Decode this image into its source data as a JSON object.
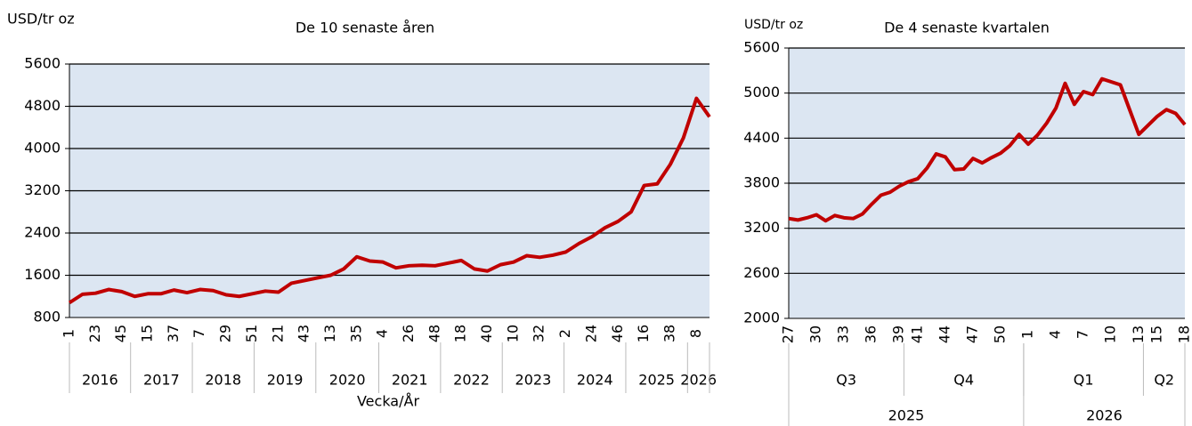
{
  "chart_data": [
    {
      "type": "line",
      "title": "De 10 senaste åren",
      "y_label": "USD/tr oz",
      "x_label": "Vecka/År",
      "categories": [
        1,
        null,
        23,
        null,
        45,
        null,
        15,
        null,
        37,
        null,
        7,
        null,
        29,
        null,
        51,
        null,
        21,
        null,
        43,
        null,
        13,
        null,
        35,
        null,
        4,
        null,
        26,
        null,
        48,
        null,
        18,
        null,
        40,
        null,
        10,
        null,
        32,
        null,
        2,
        null,
        24,
        null,
        46,
        null,
        16,
        null,
        38,
        null,
        8,
        null
      ],
      "values": [
        1080,
        1240,
        1260,
        1330,
        1290,
        1200,
        1250,
        1250,
        1320,
        1270,
        1330,
        1310,
        1230,
        1200,
        1250,
        1300,
        1280,
        1450,
        1500,
        1550,
        1600,
        1720,
        1950,
        1870,
        1850,
        1740,
        1780,
        1790,
        1780,
        1830,
        1880,
        1720,
        1680,
        1800,
        1850,
        1970,
        1940,
        1980,
        2040,
        2200,
        2330,
        2500,
        2620,
        2800,
        3300,
        3330,
        3700,
        4200,
        4950,
        4600
      ],
      "group_labels": [
        "2016",
        "2017",
        "2018",
        "2019",
        "2020",
        "2021",
        "2022",
        "2023",
        "2024",
        "2025",
        "2026"
      ],
      "color": "#c00000",
      "ylim": [
        800,
        5600
      ],
      "yticks": [
        800,
        1600,
        2400,
        3200,
        4000,
        4800,
        5600
      ],
      "grid": true
    },
    {
      "type": "line",
      "title": "De 4 senaste kvartalen",
      "y_label": "USD/tr oz",
      "categories": [
        27,
        null,
        null,
        30,
        null,
        null,
        33,
        null,
        null,
        36,
        null,
        null,
        39,
        null,
        41,
        null,
        null,
        44,
        null,
        null,
        47,
        null,
        null,
        50,
        null,
        null,
        1,
        null,
        null,
        4,
        null,
        null,
        7,
        null,
        null,
        10,
        null,
        null,
        13,
        null,
        15,
        null,
        null,
        18
      ],
      "values": [
        3330,
        3310,
        3340,
        3380,
        3300,
        3370,
        3340,
        3330,
        3390,
        3520,
        3640,
        3680,
        3760,
        3820,
        3860,
        4000,
        4190,
        4150,
        3980,
        3990,
        4130,
        4070,
        4140,
        4200,
        4300,
        4450,
        4320,
        4440,
        4600,
        4800,
        5130,
        4850,
        5020,
        4980,
        5190,
        5150,
        5110,
        4780,
        4450,
        4570,
        4690,
        4780,
        4730,
        4580
      ],
      "group_labels": [
        "Q3",
        "Q4",
        "Q1",
        "Q2"
      ],
      "outer_group_labels": [
        "2025",
        "2026"
      ],
      "color": "#c00000",
      "ylim": [
        2000,
        5600
      ],
      "yticks": [
        2000,
        2600,
        3200,
        3800,
        4400,
        5000,
        5600
      ],
      "grid": true
    }
  ]
}
